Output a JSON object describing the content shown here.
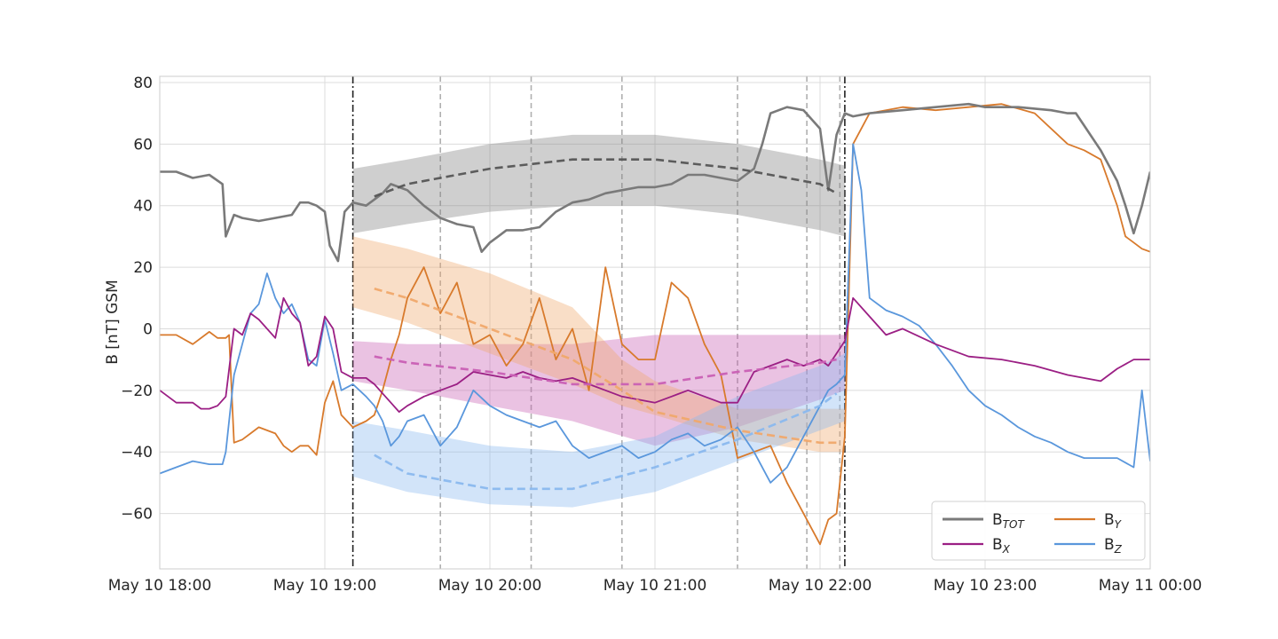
{
  "chart_data": {
    "type": "line",
    "title": "",
    "xlabel": "",
    "ylabel": "B [nT] GSM",
    "xlim": [
      "May 10 18:00",
      "May 11 00:00"
    ],
    "ylim": [
      -78,
      82
    ],
    "grid": true,
    "x_ticks": [
      {
        "t": 0,
        "label": "May 10 18:00"
      },
      {
        "t": 1,
        "label": "May 10 19:00"
      },
      {
        "t": 2,
        "label": "May 10 20:00"
      },
      {
        "t": 3,
        "label": "May 10 21:00"
      },
      {
        "t": 4,
        "label": "May 10 22:00"
      },
      {
        "t": 5,
        "label": "May 10 23:00"
      },
      {
        "t": 6,
        "label": "May 11 00:00"
      }
    ],
    "y_ticks": [
      {
        "v": 80,
        "label": "80"
      },
      {
        "v": 60,
        "label": "60"
      },
      {
        "v": 40,
        "label": "40"
      },
      {
        "v": 20,
        "label": "20"
      },
      {
        "v": 0,
        "label": "0"
      },
      {
        "v": -20,
        "label": "−20"
      },
      {
        "v": -40,
        "label": "−40"
      },
      {
        "v": -60,
        "label": "−60"
      }
    ],
    "event_lines": [
      {
        "t": 1.17,
        "style": "dashdot",
        "color": "#222222"
      },
      {
        "t": 4.15,
        "style": "dashdot",
        "color": "#222222"
      }
    ],
    "fit_lines": [
      {
        "t": 1.7,
        "style": "dashed",
        "color": "#b0b0b0"
      },
      {
        "t": 2.25,
        "style": "dashed",
        "color": "#b0b0b0"
      },
      {
        "t": 2.8,
        "style": "dashed",
        "color": "#b0b0b0"
      },
      {
        "t": 3.5,
        "style": "dashed",
        "color": "#b0b0b0"
      },
      {
        "t": 3.92,
        "style": "dashed",
        "color": "#b0b0b0"
      },
      {
        "t": 4.12,
        "style": "dashed",
        "color": "#b0b0b0"
      }
    ],
    "bands": [
      {
        "series": "B_TOT",
        "color": "#808080",
        "t": [
          1.17,
          1.5,
          2.0,
          2.5,
          3.0,
          3.5,
          4.0,
          4.15
        ],
        "lower": [
          31,
          34,
          38,
          40,
          40,
          37,
          32,
          30
        ],
        "upper": [
          52,
          55,
          60,
          63,
          63,
          60,
          55,
          53
        ],
        "mean_t": [
          1.3,
          1.5,
          2.0,
          2.5,
          3.0,
          3.5,
          4.0,
          4.1
        ],
        "mean": [
          43,
          47,
          52,
          55,
          55,
          52,
          47,
          44
        ]
      },
      {
        "series": "B_X",
        "color": "#c95fb4",
        "t": [
          1.17,
          1.5,
          2.0,
          2.5,
          3.0,
          3.5,
          4.0,
          4.15
        ],
        "lower": [
          -17,
          -20,
          -25,
          -30,
          -38,
          -32,
          -23,
          -20
        ],
        "upper": [
          -4,
          -5,
          -5,
          -5,
          -2,
          -2,
          -2,
          -2
        ],
        "mean_t": [
          1.3,
          1.5,
          2.0,
          2.5,
          3.0,
          3.5,
          4.0,
          4.1
        ],
        "mean": [
          -9,
          -11,
          -14,
          -18,
          -18,
          -14,
          -11,
          -10
        ]
      },
      {
        "series": "B_Y",
        "color": "#f0a86c",
        "t": [
          1.17,
          1.5,
          2.0,
          2.5,
          2.8,
          3.0,
          3.5,
          4.0,
          4.15
        ],
        "lower": [
          7,
          2,
          -8,
          -18,
          -25,
          -28,
          -36,
          -40,
          -40
        ],
        "upper": [
          30,
          26,
          18,
          7,
          -10,
          -17,
          -26,
          -26,
          -26
        ],
        "mean_t": [
          1.3,
          1.5,
          2.0,
          2.5,
          2.8,
          3.0,
          3.5,
          4.0,
          4.1
        ],
        "mean": [
          13,
          10,
          0,
          -10,
          -20,
          -27,
          -33,
          -37,
          -37
        ]
      },
      {
        "series": "B_Z",
        "color": "#8ab8ee",
        "t": [
          1.17,
          1.5,
          2.0,
          2.5,
          3.0,
          3.5,
          4.0,
          4.15
        ],
        "lower": [
          -48,
          -53,
          -57,
          -58,
          -53,
          -43,
          -33,
          -30
        ],
        "upper": [
          -30,
          -33,
          -38,
          -40,
          -35,
          -22,
          -12,
          -8
        ],
        "mean_t": [
          1.3,
          1.5,
          2.0,
          2.5,
          3.0,
          3.5,
          4.0,
          4.1
        ],
        "mean": [
          -41,
          -47,
          -52,
          -52,
          -45,
          -36,
          -25,
          -21
        ]
      }
    ],
    "series": [
      {
        "name": "Bₜₒₜ",
        "key": "B_TOT",
        "color": "#7a7a7a",
        "width": 2.6,
        "t": [
          0,
          0.1,
          0.2,
          0.3,
          0.38,
          0.4,
          0.45,
          0.5,
          0.6,
          0.7,
          0.8,
          0.85,
          0.9,
          0.95,
          1.0,
          1.03,
          1.08,
          1.12,
          1.17,
          1.25,
          1.3,
          1.35,
          1.4,
          1.45,
          1.5,
          1.6,
          1.7,
          1.8,
          1.9,
          1.95,
          2.0,
          2.05,
          2.1,
          2.2,
          2.3,
          2.4,
          2.5,
          2.6,
          2.7,
          2.8,
          2.9,
          3.0,
          3.1,
          3.2,
          3.3,
          3.4,
          3.5,
          3.55,
          3.6,
          3.65,
          3.7,
          3.8,
          3.9,
          3.95,
          4.0,
          4.05,
          4.1,
          4.15,
          4.2,
          4.3,
          4.5,
          4.7,
          4.9,
          5.0,
          5.2,
          5.4,
          5.5,
          5.55,
          5.6,
          5.7,
          5.8,
          5.85,
          5.9,
          5.95,
          6.0
        ],
        "values": [
          51,
          51,
          49,
          50,
          47,
          30,
          37,
          36,
          35,
          36,
          37,
          41,
          41,
          40,
          38,
          27,
          22,
          38,
          41,
          40,
          42,
          44,
          47,
          46,
          45,
          40,
          36,
          34,
          33,
          25,
          28,
          30,
          32,
          32,
          33,
          38,
          41,
          42,
          44,
          45,
          46,
          46,
          47,
          50,
          50,
          49,
          48,
          50,
          52,
          60,
          70,
          72,
          71,
          68,
          65,
          45,
          63,
          70,
          69,
          70,
          71,
          72,
          73,
          72,
          72,
          71,
          70,
          70,
          66,
          58,
          48,
          40,
          31,
          40,
          51
        ]
      },
      {
        "name": "Bₓ",
        "key": "B_X",
        "color": "#9b1f84",
        "width": 1.8,
        "t": [
          0,
          0.1,
          0.2,
          0.25,
          0.3,
          0.35,
          0.4,
          0.45,
          0.5,
          0.55,
          0.6,
          0.7,
          0.75,
          0.8,
          0.85,
          0.9,
          0.95,
          1.0,
          1.05,
          1.1,
          1.17,
          1.25,
          1.3,
          1.35,
          1.4,
          1.45,
          1.5,
          1.6,
          1.7,
          1.8,
          1.9,
          2.0,
          2.1,
          2.2,
          2.3,
          2.4,
          2.5,
          2.6,
          2.7,
          2.8,
          2.9,
          3.0,
          3.1,
          3.2,
          3.3,
          3.4,
          3.5,
          3.6,
          3.7,
          3.8,
          3.9,
          4.0,
          4.05,
          4.1,
          4.15,
          4.2,
          4.3,
          4.4,
          4.5,
          4.7,
          4.9,
          5.1,
          5.3,
          5.5,
          5.7,
          5.8,
          5.9,
          6.0
        ],
        "values": [
          -20,
          -24,
          -24,
          -26,
          -26,
          -25,
          -22,
          0,
          -2,
          5,
          3,
          -3,
          10,
          5,
          2,
          -12,
          -9,
          4,
          0,
          -14,
          -16,
          -16,
          -18,
          -21,
          -24,
          -27,
          -25,
          -22,
          -20,
          -18,
          -14,
          -15,
          -16,
          -14,
          -16,
          -17,
          -16,
          -18,
          -20,
          -22,
          -23,
          -24,
          -22,
          -20,
          -22,
          -24,
          -24,
          -14,
          -12,
          -10,
          -12,
          -10,
          -12,
          -8,
          -4,
          10,
          4,
          -2,
          0,
          -5,
          -9,
          -10,
          -12,
          -15,
          -17,
          -13,
          -10,
          -10
        ]
      },
      {
        "name": "Bᵧ",
        "key": "B_Y",
        "color": "#d87a2c",
        "width": 1.8,
        "t": [
          0,
          0.1,
          0.2,
          0.3,
          0.35,
          0.4,
          0.42,
          0.45,
          0.5,
          0.55,
          0.6,
          0.7,
          0.75,
          0.8,
          0.85,
          0.9,
          0.95,
          1.0,
          1.05,
          1.1,
          1.17,
          1.25,
          1.3,
          1.35,
          1.4,
          1.45,
          1.5,
          1.6,
          1.7,
          1.8,
          1.9,
          2.0,
          2.1,
          2.2,
          2.3,
          2.4,
          2.5,
          2.6,
          2.7,
          2.8,
          2.9,
          3.0,
          3.1,
          3.2,
          3.3,
          3.4,
          3.5,
          3.6,
          3.7,
          3.8,
          3.9,
          3.95,
          4.0,
          4.05,
          4.1,
          4.15,
          4.2,
          4.3,
          4.5,
          4.7,
          4.9,
          5.1,
          5.3,
          5.5,
          5.6,
          5.7,
          5.8,
          5.85,
          5.9,
          5.95,
          6.0
        ],
        "values": [
          -2,
          -2,
          -5,
          -1,
          -3,
          -3,
          -2,
          -37,
          -36,
          -34,
          -32,
          -34,
          -38,
          -40,
          -38,
          -38,
          -41,
          -24,
          -17,
          -28,
          -32,
          -30,
          -28,
          -20,
          -10,
          -2,
          10,
          20,
          5,
          15,
          -5,
          -2,
          -12,
          -5,
          10,
          -10,
          0,
          -20,
          20,
          -5,
          -10,
          -10,
          15,
          10,
          -5,
          -15,
          -42,
          -40,
          -38,
          -50,
          -60,
          -65,
          -70,
          -62,
          -60,
          -35,
          60,
          70,
          72,
          71,
          72,
          73,
          70,
          60,
          58,
          55,
          40,
          30,
          28,
          26,
          25
        ]
      },
      {
        "name": "Bᵨ",
        "key": "B_Z",
        "color": "#5a97dc",
        "width": 1.8,
        "t": [
          0,
          0.1,
          0.2,
          0.3,
          0.35,
          0.38,
          0.4,
          0.45,
          0.5,
          0.55,
          0.6,
          0.65,
          0.7,
          0.75,
          0.8,
          0.85,
          0.9,
          0.95,
          1.0,
          1.05,
          1.1,
          1.17,
          1.25,
          1.3,
          1.35,
          1.4,
          1.45,
          1.5,
          1.6,
          1.7,
          1.8,
          1.9,
          2.0,
          2.1,
          2.2,
          2.3,
          2.4,
          2.5,
          2.6,
          2.7,
          2.8,
          2.9,
          3.0,
          3.1,
          3.2,
          3.3,
          3.4,
          3.5,
          3.6,
          3.7,
          3.8,
          3.9,
          4.0,
          4.05,
          4.1,
          4.15,
          4.2,
          4.25,
          4.3,
          4.4,
          4.5,
          4.6,
          4.7,
          4.8,
          4.9,
          5.0,
          5.1,
          5.2,
          5.3,
          5.4,
          5.5,
          5.6,
          5.7,
          5.8,
          5.9,
          5.95,
          6.0
        ],
        "values": [
          -47,
          -45,
          -43,
          -44,
          -44,
          -44,
          -40,
          -15,
          -5,
          5,
          8,
          18,
          10,
          5,
          8,
          2,
          -10,
          -12,
          3,
          -8,
          -20,
          -18,
          -22,
          -25,
          -30,
          -38,
          -35,
          -30,
          -28,
          -38,
          -32,
          -20,
          -25,
          -28,
          -30,
          -32,
          -30,
          -38,
          -42,
          -40,
          -38,
          -42,
          -40,
          -36,
          -34,
          -38,
          -36,
          -32,
          -40,
          -50,
          -45,
          -35,
          -25,
          -20,
          -18,
          -15,
          60,
          45,
          10,
          6,
          4,
          1,
          -5,
          -12,
          -20,
          -25,
          -28,
          -32,
          -35,
          -37,
          -40,
          -42,
          -42,
          -42,
          -45,
          -20,
          -43
        ]
      }
    ],
    "legend": {
      "placement": "lower-right",
      "entries": [
        {
          "key": "B_TOT",
          "base": "B",
          "sub": "TOT"
        },
        {
          "key": "B_Y",
          "base": "B",
          "sub": "Y"
        },
        {
          "key": "B_X",
          "base": "B",
          "sub": "X"
        },
        {
          "key": "B_Z",
          "base": "B",
          "sub": "Z"
        }
      ]
    }
  }
}
